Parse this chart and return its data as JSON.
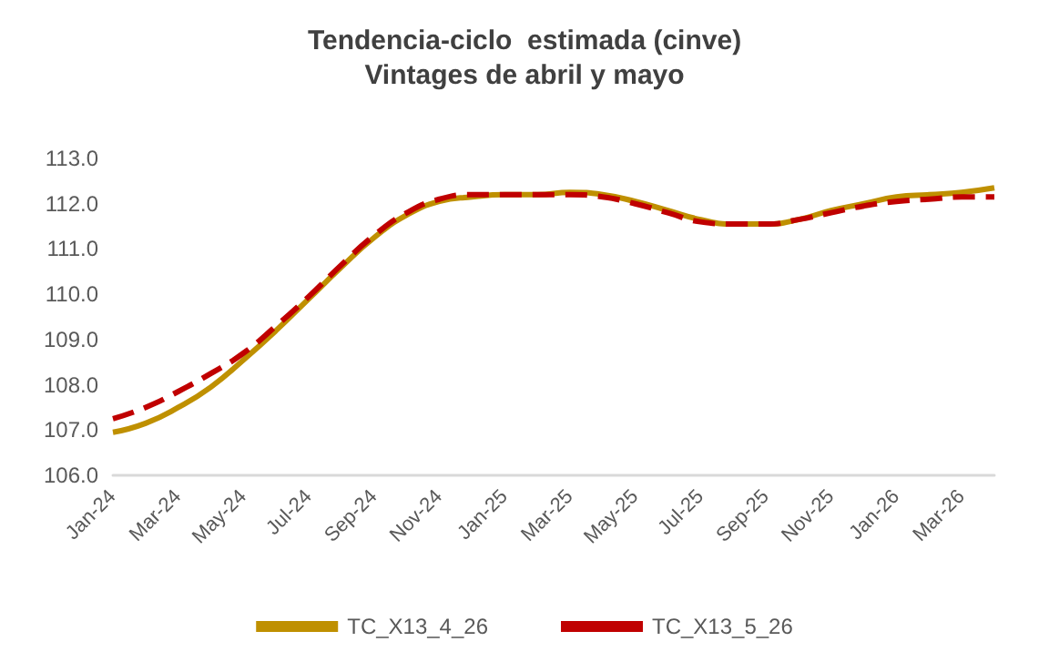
{
  "chart_data": {
    "type": "line",
    "title": "Tendencia-ciclo  estimada (cinve)",
    "subtitle": "Vintages de abril y mayo",
    "categories": [
      "Jan-24",
      null,
      "Mar-24",
      null,
      "May-24",
      null,
      "Jul-24",
      null,
      "Sep-24",
      null,
      "Nov-24",
      null,
      "Jan-25",
      null,
      "Mar-25",
      null,
      "May-25",
      null,
      "Jul-25",
      null,
      "Sep-25",
      null,
      "Nov-25",
      null,
      "Jan-26",
      null,
      "Mar-26",
      null
    ],
    "series": [
      {
        "name": "TC_X13_4_26",
        "color": "#bf9000",
        "line_style": "solid",
        "values": [
          106.95,
          107.15,
          107.5,
          107.95,
          108.55,
          109.2,
          109.9,
          110.6,
          111.25,
          111.75,
          112.05,
          112.15,
          112.2,
          112.2,
          112.25,
          112.2,
          112.05,
          111.85,
          111.65,
          111.55,
          111.55,
          111.65,
          111.85,
          112.0,
          112.15,
          112.2,
          112.25,
          112.35
        ]
      },
      {
        "name": "TC_X13_5_26",
        "color": "#c00000",
        "line_style": "dashed",
        "values": [
          107.25,
          107.5,
          107.85,
          108.25,
          108.7,
          109.3,
          109.95,
          110.65,
          111.3,
          111.8,
          112.1,
          112.2,
          112.2,
          112.2,
          112.2,
          112.15,
          112.0,
          111.8,
          111.6,
          111.55,
          111.55,
          111.65,
          111.8,
          111.95,
          112.05,
          112.1,
          112.15,
          112.15
        ]
      }
    ],
    "ylim": [
      106,
      113
    ],
    "yticks": [
      {
        "value": 106,
        "label": "106.0"
      },
      {
        "value": 107,
        "label": "107.0"
      },
      {
        "value": 108,
        "label": "108.0"
      },
      {
        "value": 109,
        "label": "109.0"
      },
      {
        "value": 110,
        "label": "110.0"
      },
      {
        "value": 111,
        "label": "111.0"
      },
      {
        "value": 112,
        "label": "112.0"
      },
      {
        "value": 113,
        "label": "113.0"
      }
    ],
    "grid": false,
    "legend": "bottom",
    "marker": "none"
  }
}
